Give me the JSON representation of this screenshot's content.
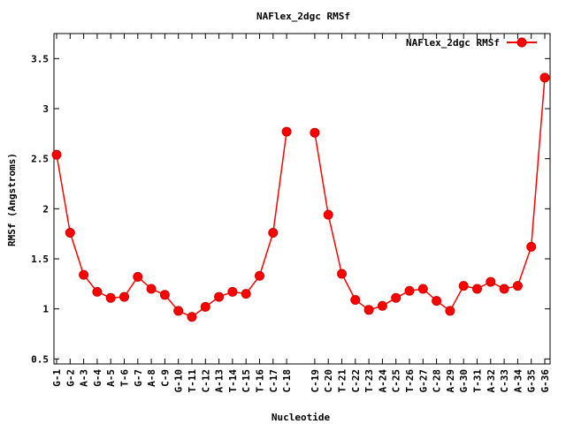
{
  "chart_data": {
    "type": "line",
    "title": "NAFlex_2dgc RMSf",
    "xlabel": "Nucleotide",
    "ylabel": "RMSf (Angstroms)",
    "ylim": [
      0.45,
      3.75
    ],
    "yticks": [
      "0.5",
      "1",
      "1.5",
      "2",
      "2.5",
      "3",
      "3.5"
    ],
    "ytick_values": [
      0.5,
      1,
      1.5,
      2,
      2.5,
      3,
      3.5
    ],
    "grid": false,
    "legend_position": "top-right",
    "color": "#ff0000",
    "categories": [
      "G-1",
      "G-2",
      "A-3",
      "G-4",
      "A-5",
      "T-6",
      "G-7",
      "A-8",
      "C-9",
      "G-10",
      "T-11",
      "C-12",
      "A-13",
      "T-14",
      "C-15",
      "T-16",
      "C-17",
      "C-18",
      "C-19",
      "C-20",
      "T-21",
      "C-22",
      "T-23",
      "A-24",
      "C-25",
      "T-26",
      "G-27",
      "C-28",
      "A-29",
      "G-30",
      "T-31",
      "A-32",
      "C-33",
      "A-34",
      "G-35",
      "G-36"
    ],
    "series": [
      {
        "name": "NAFlex_2dgc RMSf",
        "values": [
          2.54,
          1.76,
          1.34,
          1.17,
          1.11,
          1.12,
          1.32,
          1.2,
          1.14,
          0.98,
          0.92,
          1.02,
          1.12,
          1.17,
          1.15,
          1.33,
          1.76,
          2.77,
          2.76,
          1.94,
          1.35,
          1.09,
          0.99,
          1.03,
          1.11,
          1.18,
          1.2,
          1.08,
          0.98,
          1.23,
          1.2,
          1.27,
          1.2,
          1.23,
          1.62,
          3.31
        ]
      }
    ]
  }
}
